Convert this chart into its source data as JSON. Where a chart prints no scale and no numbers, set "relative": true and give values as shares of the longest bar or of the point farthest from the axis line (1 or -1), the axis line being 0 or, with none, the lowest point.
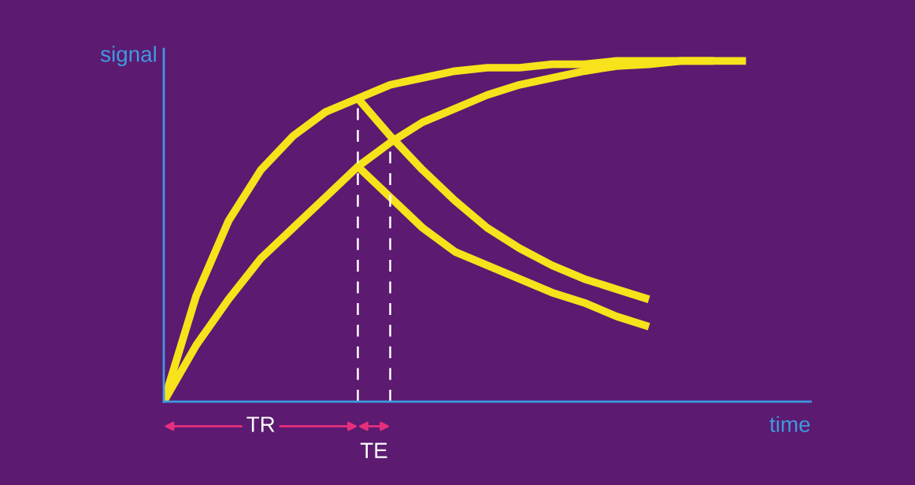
{
  "chart_data": {
    "type": "line",
    "relative": true,
    "xlabel": "time",
    "ylabel": "signal",
    "marker": "none",
    "line_style": "solid",
    "categories": [
      null,
      null,
      null,
      null,
      null,
      null,
      null,
      null,
      null,
      null,
      null,
      null,
      null,
      null,
      null,
      null,
      null,
      null,
      null,
      null,
      null
    ],
    "series": [
      {
        "color": "#f7e21b",
        "values": [
          0,
          0.31,
          0.53,
          0.68,
          0.78,
          0.85,
          0.89,
          0.93,
          0.95,
          0.97,
          0.98,
          0.98,
          0.99,
          0.99,
          1,
          1,
          1,
          1,
          null,
          null,
          null
        ]
      },
      {
        "color": "#f7e21b",
        "values": [
          0,
          0.165,
          0.3,
          0.42,
          0.51,
          0.6,
          0.69,
          0.76,
          0.82,
          0.86,
          0.9,
          0.93,
          0.95,
          0.97,
          0.985,
          0.99,
          1,
          1,
          1,
          null,
          null
        ]
      },
      {
        "color": "#f7e21b",
        "values": [
          null,
          null,
          null,
          null,
          null,
          null,
          0.89,
          0.78,
          0.68,
          0.59,
          0.51,
          0.45,
          0.4,
          0.36,
          0.33,
          0.3,
          null,
          null,
          null,
          null,
          null
        ]
      },
      {
        "color": "#f7e21b",
        "values": [
          null,
          null,
          null,
          null,
          null,
          null,
          0.69,
          0.6,
          0.51,
          0.44,
          0.4,
          0.36,
          0.32,
          0.29,
          0.25,
          0.22,
          null,
          null,
          null,
          null,
          null
        ]
      }
    ],
    "annotations": [
      "TR",
      "TE"
    ]
  }
}
